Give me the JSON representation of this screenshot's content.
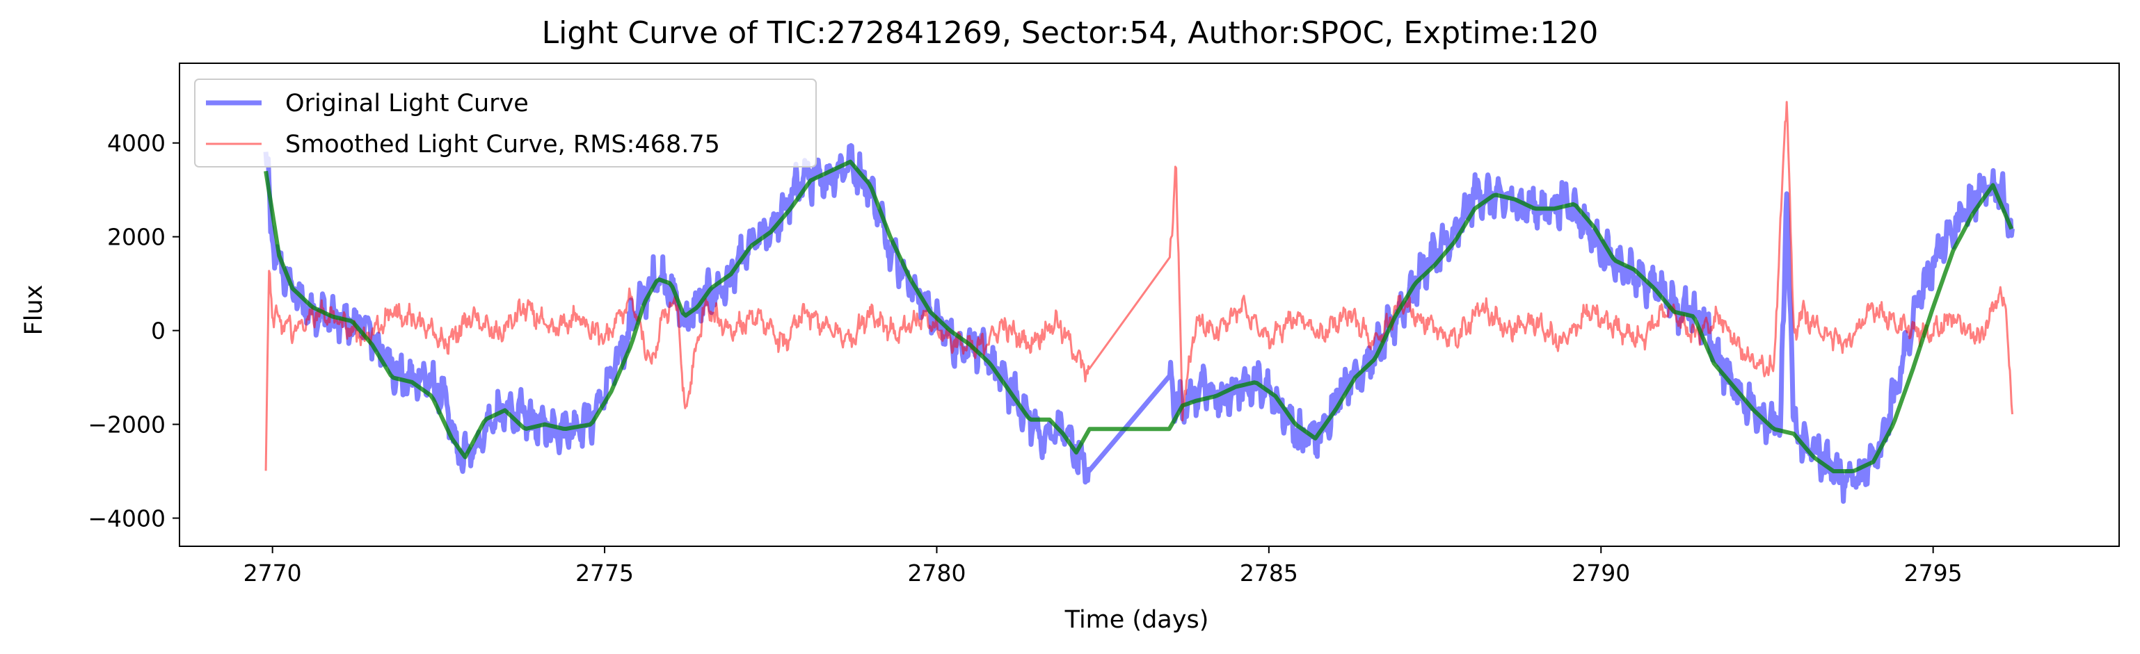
{
  "chart_data": {
    "type": "line",
    "title": "Light Curve of TIC:272841269, Sector:54, Author:SPOC, Exptime:120",
    "xlabel": "Time (days)",
    "ylabel": "Flux",
    "xlim": [
      2768.6,
      2797.8
    ],
    "ylim": [
      -4600,
      5700
    ],
    "xticks": [
      2770,
      2775,
      2780,
      2785,
      2790,
      2795
    ],
    "xtick_labels": [
      "2770",
      "2775",
      "2780",
      "2785",
      "2790",
      "2795"
    ],
    "yticks": [
      -4000,
      -2000,
      0,
      2000,
      4000
    ],
    "ytick_labels": [
      "−4000",
      "−2000",
      "0",
      "2000",
      "4000"
    ],
    "grid": false,
    "legend_position": "top-left",
    "data_gap": [
      2782.3,
      2783.5
    ],
    "series": [
      {
        "name": "Original Light Curve",
        "color": "#0000ff",
        "opacity": 0.5,
        "x": [
          2769.9,
          2770.0,
          2770.2,
          2770.5,
          2771.0,
          2771.4,
          2771.7,
          2772.0,
          2772.3,
          2772.6,
          2772.8,
          2773.0,
          2773.3,
          2773.6,
          2774.0,
          2774.4,
          2774.8,
          2775.1,
          2775.5,
          2775.8,
          2776.0,
          2776.2,
          2776.5,
          2776.8,
          2777.2,
          2777.6,
          2778.0,
          2778.3,
          2778.7,
          2779.0,
          2779.3,
          2779.6,
          2780.0,
          2780.3,
          2780.6,
          2781.0,
          2781.3,
          2781.6,
          2781.9,
          2782.1,
          2782.3,
          2783.5,
          2783.6,
          2783.8,
          2784.0,
          2784.3,
          2784.6,
          2784.9,
          2785.2,
          2785.5,
          2785.8,
          2786.1,
          2786.5,
          2786.8,
          2787.1,
          2787.4,
          2787.8,
          2788.1,
          2788.5,
          2788.8,
          2789.2,
          2789.5,
          2789.8,
          2790.2,
          2790.5,
          2790.9,
          2791.2,
          2791.5,
          2791.8,
          2792.1,
          2792.4,
          2792.7,
          2792.8,
          2792.9,
          2793.0,
          2793.3,
          2793.6,
          2793.9,
          2794.2,
          2794.5,
          2794.8,
          2795.1,
          2795.4,
          2795.7,
          2796.0,
          2796.2
        ],
        "y": [
          3800,
          1800,
          1100,
          500,
          200,
          100,
          -600,
          -1100,
          -1000,
          -1500,
          -2700,
          -2600,
          -1900,
          -1700,
          -2000,
          -2100,
          -1900,
          -1000,
          500,
          1200,
          900,
          200,
          700,
          900,
          1800,
          2300,
          3300,
          3200,
          3600,
          3000,
          1800,
          1000,
          200,
          -300,
          -300,
          -1000,
          -1700,
          -2300,
          -2100,
          -2600,
          -3100,
          -800,
          -1600,
          -1500,
          -1200,
          -1500,
          -1200,
          -1100,
          -1700,
          -2300,
          -2200,
          -1200,
          -700,
          0,
          700,
          1500,
          2000,
          2900,
          2800,
          2700,
          2600,
          2800,
          2200,
          1400,
          1200,
          900,
          400,
          300,
          -700,
          -1400,
          -1800,
          -2100,
          3000,
          -2100,
          -2300,
          -2700,
          -3100,
          -3100,
          -2500,
          -900,
          700,
          1800,
          2400,
          2900,
          3100,
          2100
        ]
      },
      {
        "name": "Smoothed Light Curve, RMS:468.75",
        "color": "#ff0000",
        "opacity": 0.5,
        "x": [
          2769.9,
          2769.95,
          2770.0,
          2770.3,
          2770.7,
          2771.0,
          2771.4,
          2771.8,
          2772.2,
          2772.6,
          2773.0,
          2773.4,
          2773.8,
          2774.2,
          2774.6,
          2775.0,
          2775.4,
          2775.7,
          2775.9,
          2776.1,
          2776.2,
          2776.5,
          2776.9,
          2777.3,
          2777.7,
          2778.0,
          2778.3,
          2778.7,
          2779.0,
          2779.4,
          2779.8,
          2780.2,
          2780.6,
          2781.0,
          2781.4,
          2781.8,
          2782.1,
          2782.3,
          2783.5,
          2783.6,
          2783.7,
          2783.9,
          2784.2,
          2784.6,
          2785.0,
          2785.4,
          2785.8,
          2786.2,
          2786.6,
          2787.0,
          2787.4,
          2787.8,
          2788.2,
          2788.6,
          2789.0,
          2789.4,
          2789.8,
          2790.2,
          2790.6,
          2791.0,
          2791.4,
          2791.8,
          2792.2,
          2792.6,
          2792.8,
          2792.9,
          2793.0,
          2793.3,
          2793.7,
          2794.1,
          2794.5,
          2794.9,
          2795.3,
          2795.7,
          2796.0,
          2796.1,
          2796.2
        ],
        "y": [
          -3100,
          1500,
          300,
          0,
          400,
          200,
          -200,
          400,
          200,
          -300,
          300,
          -100,
          500,
          0,
          300,
          -200,
          700,
          -800,
          400,
          600,
          -1800,
          500,
          0,
          300,
          -300,
          400,
          100,
          -200,
          400,
          -100,
          300,
          -200,
          -400,
          100,
          -300,
          200,
          -500,
          -1000,
          1400,
          3500,
          -1700,
          200,
          0,
          500,
          -200,
          300,
          -100,
          400,
          -300,
          600,
          100,
          -200,
          500,
          0,
          200,
          -300,
          400,
          100,
          -200,
          500,
          -100,
          300,
          -600,
          -800,
          5100,
          -200,
          400,
          0,
          -300,
          500,
          100,
          -100,
          300,
          -200,
          800,
          400,
          -2000
        ]
      },
      {
        "name": "",
        "color": "#008000",
        "opacity": 0.75,
        "x": [
          2769.9,
          2770.1,
          2770.3,
          2770.6,
          2770.9,
          2771.2,
          2771.5,
          2771.8,
          2772.1,
          2772.4,
          2772.7,
          2772.9,
          2773.2,
          2773.5,
          2773.8,
          2774.1,
          2774.4,
          2774.8,
          2775.1,
          2775.4,
          2775.6,
          2775.8,
          2776.0,
          2776.2,
          2776.4,
          2776.6,
          2776.9,
          2777.2,
          2777.5,
          2777.8,
          2778.1,
          2778.4,
          2778.7,
          2779.0,
          2779.3,
          2779.6,
          2779.9,
          2780.2,
          2780.5,
          2780.8,
          2781.1,
          2781.4,
          2781.7,
          2781.9,
          2782.1,
          2782.3,
          2783.5,
          2783.7,
          2783.9,
          2784.2,
          2784.5,
          2784.8,
          2785.1,
          2785.4,
          2785.7,
          2786.0,
          2786.3,
          2786.6,
          2786.9,
          2787.2,
          2787.5,
          2787.8,
          2788.1,
          2788.4,
          2788.7,
          2789.0,
          2789.3,
          2789.6,
          2789.9,
          2790.2,
          2790.5,
          2790.8,
          2791.1,
          2791.4,
          2791.7,
          2792.0,
          2792.3,
          2792.6,
          2792.9,
          2793.2,
          2793.5,
          2793.8,
          2794.1,
          2794.4,
          2794.7,
          2795.0,
          2795.3,
          2795.6,
          2795.9,
          2796.2
        ],
        "y": [
          3400,
          1600,
          900,
          500,
          300,
          200,
          -300,
          -1000,
          -1100,
          -1400,
          -2300,
          -2700,
          -1900,
          -1700,
          -2100,
          -2000,
          -2100,
          -2000,
          -1300,
          -300,
          600,
          1100,
          1000,
          300,
          500,
          900,
          1200,
          1800,
          2100,
          2600,
          3200,
          3400,
          3600,
          3100,
          2000,
          1100,
          400,
          0,
          -300,
          -700,
          -1300,
          -1900,
          -1900,
          -2200,
          -2600,
          -2100,
          -2100,
          -1600,
          -1500,
          -1400,
          -1200,
          -1100,
          -1400,
          -2000,
          -2300,
          -1700,
          -1000,
          -600,
          300,
          1000,
          1400,
          1900,
          2600,
          2900,
          2800,
          2600,
          2600,
          2700,
          2200,
          1500,
          1300,
          900,
          400,
          300,
          -700,
          -1200,
          -1700,
          -2100,
          -2200,
          -2700,
          -3000,
          -3000,
          -2800,
          -2000,
          -800,
          500,
          1700,
          2500,
          3100,
          2100
        ]
      }
    ]
  }
}
